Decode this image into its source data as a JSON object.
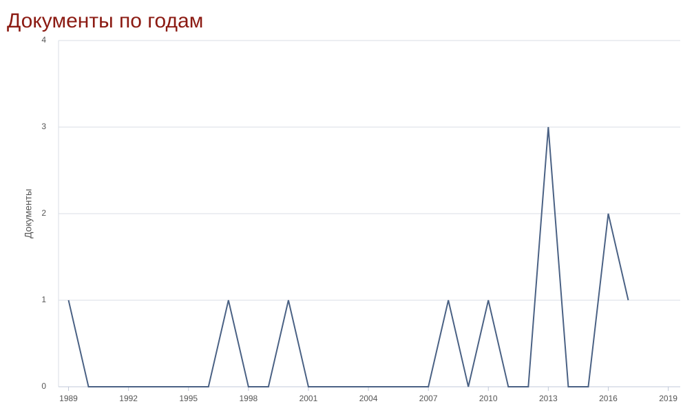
{
  "chart_data": {
    "type": "line",
    "title": "Документы по годам",
    "y_label": "Документы",
    "x": [
      1989,
      1990,
      1991,
      1992,
      1993,
      1994,
      1995,
      1996,
      1997,
      1998,
      1999,
      2000,
      2001,
      2002,
      2003,
      2004,
      2005,
      2006,
      2007,
      2008,
      2009,
      2010,
      2011,
      2012,
      2013,
      2014,
      2015,
      2016,
      2017
    ],
    "values": [
      1,
      0,
      0,
      0,
      0,
      0,
      0,
      0,
      1,
      0,
      0,
      1,
      0,
      0,
      0,
      0,
      0,
      0,
      0,
      1,
      0,
      1,
      0,
      0,
      3,
      0,
      0,
      2,
      1
    ],
    "color": "#4a6184",
    "xlim": [
      1988.5,
      2019.6
    ],
    "xticks": [
      1989,
      1992,
      1995,
      1998,
      2001,
      2004,
      2007,
      2010,
      2013,
      2016,
      2019
    ],
    "ylim": [
      0,
      4
    ],
    "yticks": [
      0,
      1,
      2,
      3,
      4
    ],
    "grid": true
  }
}
